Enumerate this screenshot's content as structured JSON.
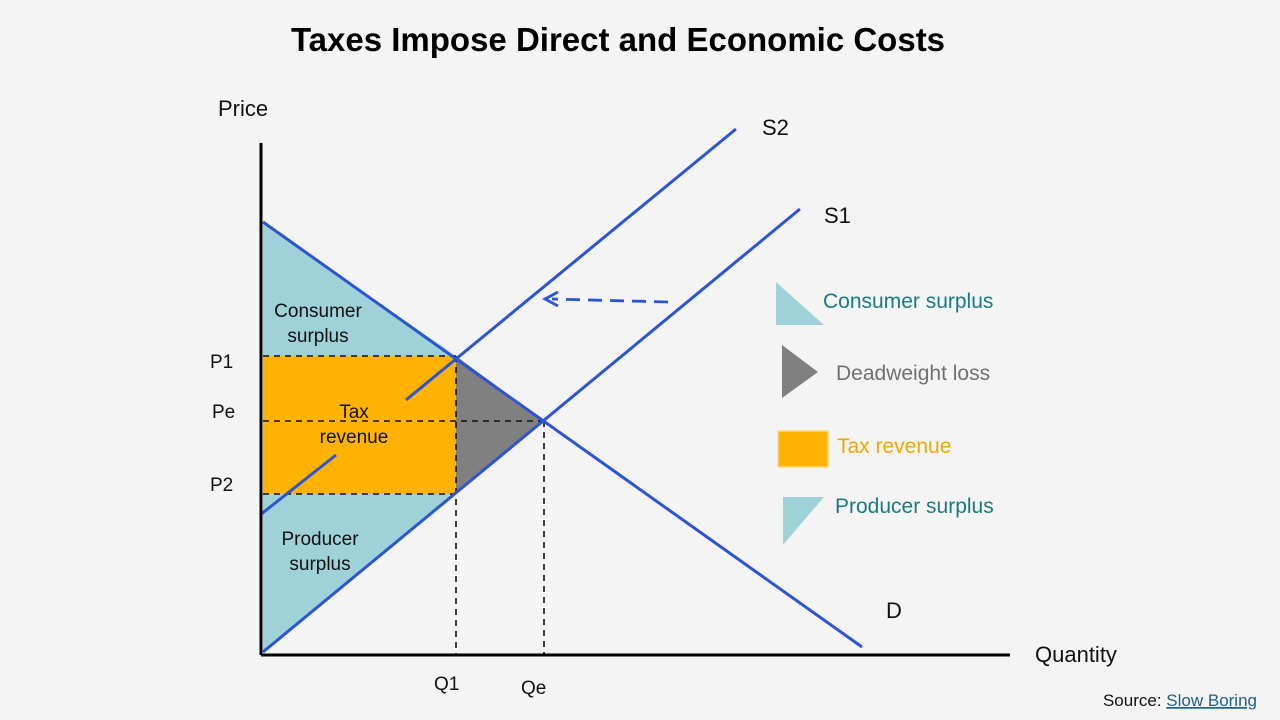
{
  "title": "Taxes Impose Direct and Economic Costs",
  "axes": {
    "y_label": "Price",
    "x_label": "Quantity"
  },
  "curves": {
    "s2_label": "S2",
    "s1_label": "S1",
    "d_label": "D"
  },
  "price_ticks": {
    "p1": "P1",
    "pe": "Pe",
    "p2": "P2"
  },
  "quantity_ticks": {
    "q1": "Q1",
    "qe": "Qe"
  },
  "areas": {
    "consumer_surplus": [
      "Consumer",
      "surplus"
    ],
    "tax_revenue": [
      "Tax",
      "revenue"
    ],
    "producer_surplus": [
      "Producer",
      "surplus"
    ]
  },
  "legend": {
    "consumer_surplus": "Consumer surplus",
    "deadweight_loss": "Deadweight loss",
    "tax_revenue": "Tax revenue",
    "producer_surplus": "Producer surplus"
  },
  "source": {
    "prefix": "Source: ",
    "link_text": "Slow Boring"
  },
  "colors": {
    "curve": "#2b55d4",
    "surplus": "#9fd2d8",
    "deadweight": "#808080",
    "tax": "#ffb300",
    "legend_consumer_text": "#1a7a82",
    "legend_deadweight_text": "#707070",
    "legend_tax_text": "#f0a800",
    "legend_producer_text": "#1a7a82",
    "link": "#1f5f80"
  }
}
